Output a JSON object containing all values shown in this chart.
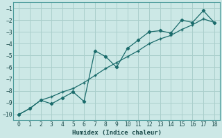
{
  "xlabel": "Humidex (Indice chaleur)",
  "bg_color": "#cce8e6",
  "grid_color": "#aacfcc",
  "line_color": "#1a6b6b",
  "xlim": [
    -0.5,
    18.5
  ],
  "ylim": [
    -10.5,
    -0.5
  ],
  "yticks": [
    -10,
    -9,
    -8,
    -7,
    -6,
    -5,
    -4,
    -3,
    -2,
    -1
  ],
  "xticks": [
    0,
    1,
    2,
    3,
    4,
    5,
    6,
    7,
    8,
    9,
    10,
    11,
    12,
    13,
    14,
    15,
    16,
    17,
    18
  ],
  "line1_x": [
    0,
    1,
    2,
    3,
    4,
    5,
    6,
    7,
    8,
    9,
    10,
    11,
    12,
    13,
    14,
    15,
    16,
    17,
    18
  ],
  "line1_y": [
    -10.0,
    -9.5,
    -8.8,
    -9.1,
    -8.6,
    -8.1,
    -8.9,
    -4.6,
    -5.1,
    -6.0,
    -4.4,
    -3.7,
    -3.0,
    -2.9,
    -3.1,
    -2.0,
    -2.2,
    -1.2,
    -2.2
  ],
  "line2_x": [
    0,
    1,
    2,
    3,
    4,
    5,
    6,
    7,
    8,
    9,
    10,
    11,
    12,
    13,
    14,
    15,
    16,
    17,
    18
  ],
  "line2_y": [
    -10.0,
    -9.5,
    -8.8,
    -8.5,
    -8.1,
    -7.8,
    -7.3,
    -6.7,
    -6.1,
    -5.6,
    -5.1,
    -4.6,
    -4.0,
    -3.6,
    -3.3,
    -2.8,
    -2.4,
    -1.9,
    -2.2
  ]
}
